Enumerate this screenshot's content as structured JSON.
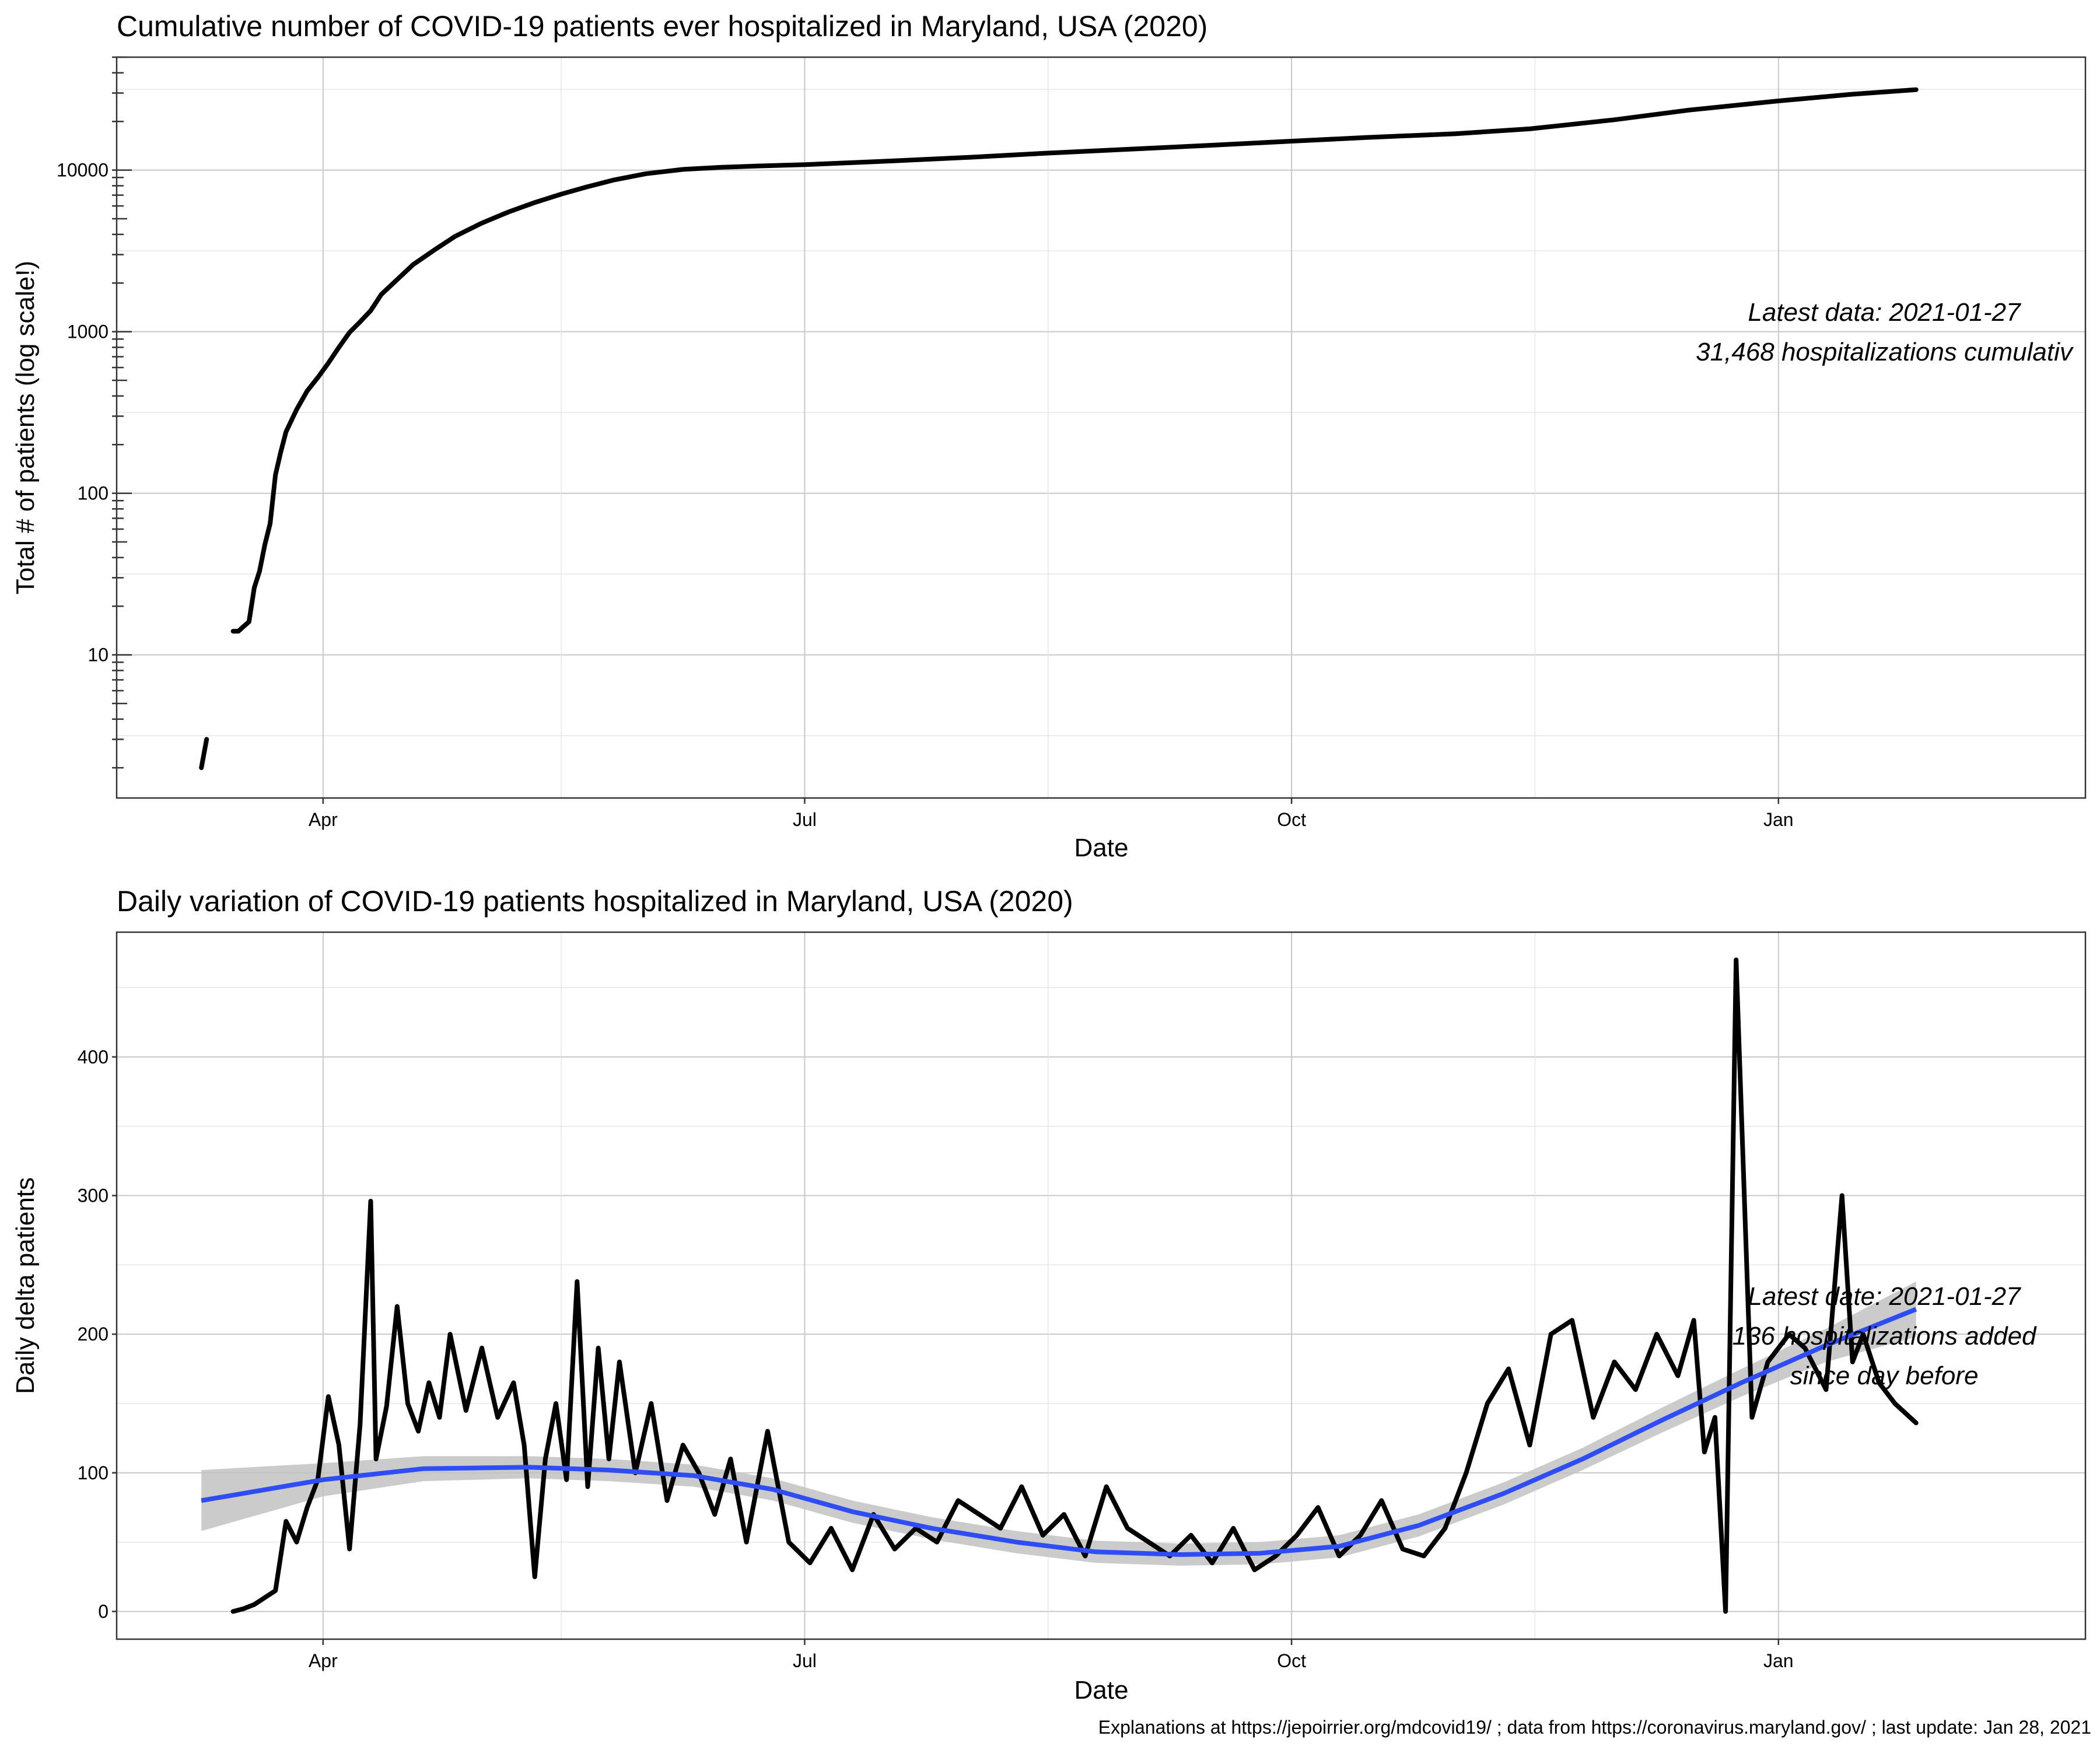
{
  "chart_data": [
    {
      "type": "line",
      "title": "Cumulative number of COVID-19 patients ever hospitalized in Maryland, USA (2020)",
      "xlabel": "Date",
      "ylabel": "Total # of patients  (log scale!)",
      "yscale": "log",
      "xlim": [
        "2020-02-22",
        "2021-02-28"
      ],
      "ylim": [
        1.3,
        50000
      ],
      "x_ticks": [
        {
          "label": "Apr",
          "date": "2020-04-01"
        },
        {
          "label": "Jul",
          "date": "2020-07-01"
        },
        {
          "label": "Oct",
          "date": "2020-10-01"
        },
        {
          "label": "Jan",
          "date": "2021-01-01"
        }
      ],
      "y_ticks": [
        {
          "label": "10",
          "value": 10
        },
        {
          "label": "100",
          "value": 100
        },
        {
          "label": "1000",
          "value": 1000
        },
        {
          "label": "10000",
          "value": 10000
        }
      ],
      "annotation": [
        "Latest data: 2021-01-27",
        "31,468 hospitalizations cumulativ"
      ],
      "series": [
        {
          "name": "early",
          "dates": [
            "2020-03-09",
            "2020-03-10"
          ],
          "values": [
            2,
            3
          ]
        },
        {
          "name": "cumulative",
          "dates": [
            "2020-03-15",
            "2020-03-16",
            "2020-03-17",
            "2020-03-18",
            "2020-03-19",
            "2020-03-20",
            "2020-03-21",
            "2020-03-22",
            "2020-03-23",
            "2020-03-24",
            "2020-03-25",
            "2020-03-27",
            "2020-03-29",
            "2020-03-31",
            "2020-04-02",
            "2020-04-04",
            "2020-04-06",
            "2020-04-08",
            "2020-04-10",
            "2020-04-12",
            "2020-04-15",
            "2020-04-18",
            "2020-04-22",
            "2020-04-26",
            "2020-05-01",
            "2020-05-06",
            "2020-05-11",
            "2020-05-16",
            "2020-05-21",
            "2020-05-26",
            "2020-06-01",
            "2020-06-08",
            "2020-06-15",
            "2020-06-22",
            "2020-07-01",
            "2020-07-15",
            "2020-08-01",
            "2020-08-15",
            "2020-09-01",
            "2020-09-15",
            "2020-10-01",
            "2020-10-15",
            "2020-11-01",
            "2020-11-15",
            "2020-12-01",
            "2020-12-15",
            "2021-01-01",
            "2021-01-15",
            "2021-01-27"
          ],
          "values": [
            14,
            14,
            15,
            16,
            26,
            33,
            48,
            65,
            130,
            180,
            240,
            330,
            430,
            520,
            640,
            800,
            990,
            1150,
            1350,
            1700,
            2100,
            2600,
            3200,
            3900,
            4700,
            5500,
            6300,
            7100,
            7900,
            8700,
            9500,
            10100,
            10400,
            10600,
            10800,
            11300,
            12000,
            12700,
            13500,
            14200,
            15100,
            15900,
            16800,
            18000,
            20500,
            23500,
            26800,
            29500,
            31468
          ]
        }
      ]
    },
    {
      "type": "line",
      "title": "Daily variation of COVID-19 patients hospitalized in Maryland, USA (2020)",
      "xlabel": "Date",
      "ylabel": "Daily delta patients",
      "xlim": [
        "2020-02-22",
        "2021-02-28"
      ],
      "ylim": [
        -20,
        490
      ],
      "x_ticks": [
        {
          "label": "Apr",
          "date": "2020-04-01"
        },
        {
          "label": "Jul",
          "date": "2020-07-01"
        },
        {
          "label": "Oct",
          "date": "2020-10-01"
        },
        {
          "label": "Jan",
          "date": "2021-01-01"
        }
      ],
      "y_ticks": [
        {
          "label": "0",
          "value": 0
        },
        {
          "label": "100",
          "value": 100
        },
        {
          "label": "200",
          "value": 200
        },
        {
          "label": "300",
          "value": 300
        },
        {
          "label": "400",
          "value": 400
        }
      ],
      "annotation": [
        "Latest date: 2021-01-27",
        "136 hospitalizations added",
        "since day before"
      ],
      "series": [
        {
          "name": "daily delta",
          "dates": [
            "2020-03-15",
            "2020-03-17",
            "2020-03-19",
            "2020-03-21",
            "2020-03-23",
            "2020-03-25",
            "2020-03-27",
            "2020-03-29",
            "2020-03-31",
            "2020-04-02",
            "2020-04-04",
            "2020-04-06",
            "2020-04-08",
            "2020-04-10",
            "2020-04-11",
            "2020-04-13",
            "2020-04-15",
            "2020-04-17",
            "2020-04-19",
            "2020-04-21",
            "2020-04-23",
            "2020-04-25",
            "2020-04-28",
            "2020-05-01",
            "2020-05-04",
            "2020-05-07",
            "2020-05-09",
            "2020-05-11",
            "2020-05-13",
            "2020-05-15",
            "2020-05-17",
            "2020-05-19",
            "2020-05-21",
            "2020-05-23",
            "2020-05-25",
            "2020-05-27",
            "2020-05-30",
            "2020-06-02",
            "2020-06-05",
            "2020-06-08",
            "2020-06-11",
            "2020-06-14",
            "2020-06-17",
            "2020-06-20",
            "2020-06-24",
            "2020-06-28",
            "2020-07-02",
            "2020-07-06",
            "2020-07-10",
            "2020-07-14",
            "2020-07-18",
            "2020-07-22",
            "2020-07-26",
            "2020-07-30",
            "2020-08-03",
            "2020-08-07",
            "2020-08-11",
            "2020-08-15",
            "2020-08-19",
            "2020-08-23",
            "2020-08-27",
            "2020-08-31",
            "2020-09-04",
            "2020-09-08",
            "2020-09-12",
            "2020-09-16",
            "2020-09-20",
            "2020-09-24",
            "2020-09-28",
            "2020-10-02",
            "2020-10-06",
            "2020-10-10",
            "2020-10-14",
            "2020-10-18",
            "2020-10-22",
            "2020-10-26",
            "2020-10-30",
            "2020-11-03",
            "2020-11-07",
            "2020-11-11",
            "2020-11-15",
            "2020-11-19",
            "2020-11-23",
            "2020-11-27",
            "2020-12-01",
            "2020-12-05",
            "2020-12-09",
            "2020-12-13",
            "2020-12-16",
            "2020-12-18",
            "2020-12-20",
            "2020-12-22",
            "2020-12-24",
            "2020-12-27",
            "2020-12-30",
            "2021-01-03",
            "2021-01-06",
            "2021-01-10",
            "2021-01-13",
            "2021-01-15",
            "2021-01-17",
            "2021-01-20",
            "2021-01-23",
            "2021-01-27"
          ],
          "values": [
            0,
            2,
            5,
            10,
            15,
            65,
            50,
            75,
            95,
            155,
            120,
            45,
            135,
            296,
            110,
            148,
            220,
            150,
            130,
            165,
            140,
            200,
            145,
            190,
            140,
            165,
            120,
            25,
            110,
            150,
            95,
            238,
            90,
            190,
            110,
            180,
            100,
            150,
            80,
            120,
            100,
            70,
            110,
            50,
            130,
            50,
            35,
            60,
            30,
            70,
            45,
            60,
            50,
            80,
            70,
            60,
            90,
            55,
            70,
            40,
            90,
            60,
            50,
            40,
            55,
            35,
            60,
            30,
            40,
            55,
            75,
            40,
            55,
            80,
            45,
            40,
            60,
            100,
            150,
            175,
            120,
            200,
            210,
            140,
            180,
            160,
            200,
            170,
            210,
            115,
            140,
            0,
            470,
            140,
            180,
            200,
            190,
            160,
            300,
            180,
            200,
            165,
            150,
            136
          ]
        },
        {
          "name": "loess smooth",
          "dates": [
            "2020-03-09",
            "2020-04-01",
            "2020-04-20",
            "2020-05-10",
            "2020-05-25",
            "2020-06-10",
            "2020-06-25",
            "2020-07-10",
            "2020-07-25",
            "2020-08-10",
            "2020-08-25",
            "2020-09-10",
            "2020-09-25",
            "2020-10-10",
            "2020-10-25",
            "2020-11-10",
            "2020-11-25",
            "2020-12-10",
            "2020-12-25",
            "2021-01-10",
            "2021-01-27"
          ],
          "values": [
            80,
            95,
            103,
            104,
            102,
            98,
            88,
            72,
            60,
            50,
            43,
            41,
            42,
            47,
            62,
            85,
            110,
            138,
            165,
            192,
            218
          ],
          "ci_half_width": [
            22,
            12,
            9,
            8,
            8,
            8,
            8,
            8,
            8,
            8,
            8,
            8,
            8,
            8,
            8,
            8,
            8,
            9,
            10,
            12,
            20
          ]
        }
      ]
    }
  ],
  "footer": {
    "caption": "Explanations at https://jepoirrier.org/mdcovid19/ ; data from https://coronavirus.maryland.gov/ ; last update: Jan 28, 2021"
  }
}
